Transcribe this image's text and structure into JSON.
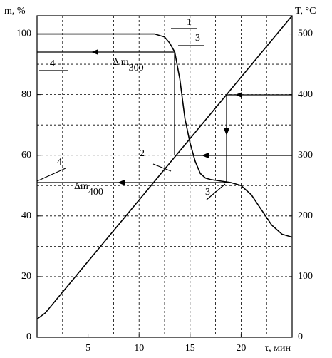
{
  "chart_data": {
    "type": "line",
    "xlabel": "τ, мин",
    "ylabel": "m, %",
    "y2label": "T, °C",
    "xlim": [
      0,
      25
    ],
    "xticks": [
      5,
      10,
      15,
      20
    ],
    "ylim": [
      0,
      106
    ],
    "yticks": [
      0,
      20,
      40,
      60,
      80,
      100
    ],
    "y2lim": [
      0,
      530
    ],
    "y2ticks": [
      0,
      100,
      200,
      300,
      400,
      500
    ],
    "xgrid": [
      2.5,
      5,
      7.5,
      10,
      12.5,
      15,
      17.5,
      20,
      22.5
    ],
    "ygrid": [
      10,
      20,
      30,
      40,
      50,
      60,
      70,
      80,
      90,
      100
    ],
    "grid": true,
    "series": [
      {
        "name": "1",
        "color": "#000000",
        "x": [
          0,
          11.5,
          12.5,
          13,
          13.5,
          14,
          14.5,
          15,
          15.5,
          16,
          16.5,
          17,
          18,
          19,
          20,
          21,
          22,
          23,
          24,
          25
        ],
        "values": [
          100,
          100,
          99,
          97,
          94,
          85,
          72,
          64,
          58,
          54,
          52.5,
          52,
          51.5,
          51,
          50,
          47,
          42,
          37,
          34,
          33
        ]
      },
      {
        "name": "2",
        "color": "#000000",
        "axis": "y2",
        "x": [
          0,
          0.8,
          25
        ],
        "values": [
          30,
          40,
          530
        ]
      }
    ],
    "annotations": [
      "3",
      "3",
      "4",
      "4"
    ],
    "delta_labels": [
      {
        "text": "Δ m",
        "sub": "300"
      },
      {
        "text": "Δm",
        "sub": "400"
      }
    ]
  }
}
